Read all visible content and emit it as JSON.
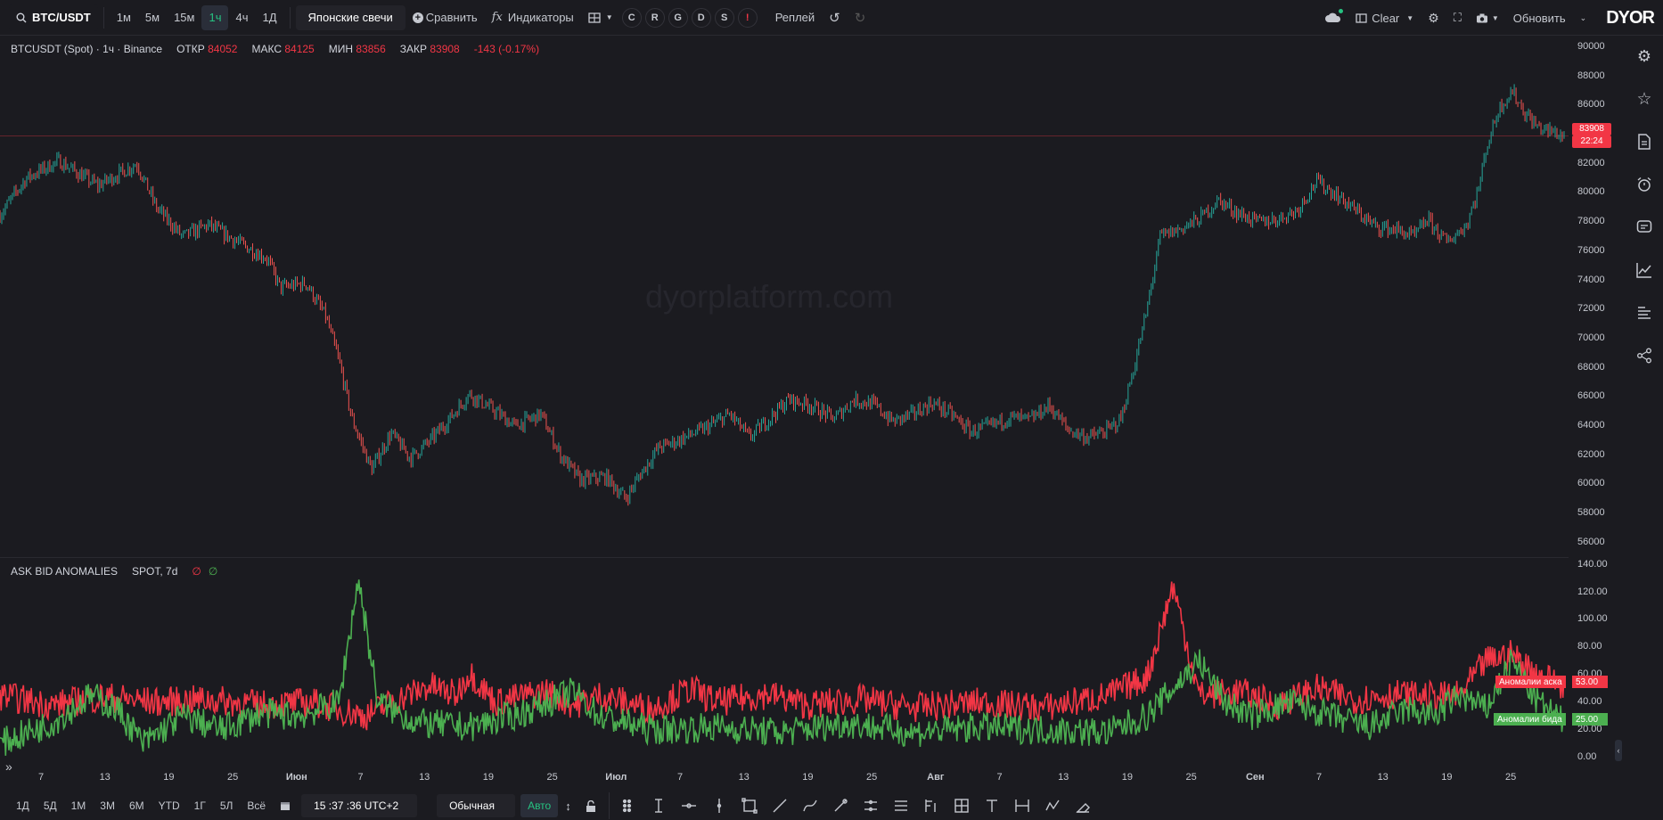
{
  "topbar": {
    "symbol": "BTC/USDT",
    "intervals": [
      {
        "label": "1м",
        "active": false
      },
      {
        "label": "5м",
        "active": false
      },
      {
        "label": "15м",
        "active": false
      },
      {
        "label": "1ч",
        "active": true
      },
      {
        "label": "4ч",
        "active": false
      },
      {
        "label": "1Д",
        "active": false
      }
    ],
    "chart_type": "Японские свечи",
    "compare_label": "Сравнить",
    "indicators_label": "Индикаторы",
    "letter_buttons": [
      "C",
      "R",
      "G",
      "D",
      "S",
      "!"
    ],
    "replay_label": "Реплей",
    "clear_label": "Clear",
    "update_label": "Обновить",
    "logo": "DYOR"
  },
  "infobar": {
    "title": "BTCUSDT (Spot) · 1ч · Binance",
    "open_label": "ОТКР",
    "open": "84052",
    "high_label": "МАКС",
    "high": "84125",
    "low_label": "МИН",
    "low": "83856",
    "close_label": "ЗАКР",
    "close": "83908",
    "change": "-143 (-0.17%)"
  },
  "watermark": "dyorplatform.com",
  "price_axis": {
    "labels": [
      "90000",
      "88000",
      "86000",
      "84000",
      "82000",
      "80000",
      "78000",
      "76000",
      "74000",
      "72000",
      "70000",
      "68000",
      "66000",
      "64000",
      "62000",
      "60000",
      "58000",
      "56000"
    ],
    "last_price": "83908",
    "countdown": "22:24"
  },
  "indicator": {
    "name": "ASK BID ANOMALIES",
    "params": "SPOT, 7d",
    "ask_symbol": "∅",
    "bid_symbol": "∅",
    "axis_labels": [
      "140.00",
      "120.00",
      "100.00",
      "80.00",
      "60.00",
      "40.00",
      "20.00",
      "0.00"
    ],
    "ask_label": "Аномалии аска",
    "ask_value": "53.00",
    "bid_label": "Аномалии бида",
    "bid_value": "25.00"
  },
  "time_axis": [
    "7",
    "13",
    "19",
    "25",
    "Июн",
    "7",
    "13",
    "19",
    "25",
    "Июл",
    "7",
    "13",
    "19",
    "25",
    "Авг",
    "7",
    "13",
    "19",
    "25",
    "Сен",
    "7",
    "13",
    "19",
    "25"
  ],
  "bottombar": {
    "ranges": [
      "1Д",
      "5Д",
      "1М",
      "3М",
      "6М",
      "YTD",
      "1Г",
      "5Л",
      "Всё"
    ],
    "time": "15 :37 :36 UTC+2",
    "scale_mode": "Обычная",
    "auto_label": "Авто"
  },
  "colors": {
    "up": "#26a69a",
    "down": "#ef5350",
    "ask": "#f23645",
    "bid": "#4caf50",
    "accent": "#26c281"
  },
  "chart_data": [
    {
      "type": "candlestick",
      "title": "BTCUSDT (Spot) · 1ч · Binance",
      "ylim": [
        55000,
        90800
      ],
      "x_ticks": [
        "7",
        "13",
        "19",
        "25",
        "Июн",
        "7",
        "13",
        "19",
        "25",
        "Июл",
        "7",
        "13",
        "19",
        "25",
        "Авг",
        "7",
        "13",
        "19",
        "25",
        "Сен",
        "7",
        "13",
        "19",
        "25"
      ],
      "close_path": [
        [
          0,
          78500
        ],
        [
          4,
          81000
        ],
        [
          9,
          82200
        ],
        [
          15,
          80500
        ],
        [
          21,
          82000
        ],
        [
          24,
          79000
        ],
        [
          28,
          77000
        ],
        [
          32,
          77800
        ],
        [
          37,
          76500
        ],
        [
          41,
          75500
        ],
        [
          43,
          73500
        ],
        [
          47,
          73800
        ],
        [
          50,
          71500
        ],
        [
          52,
          68500
        ],
        [
          54,
          64500
        ],
        [
          57,
          61000
        ],
        [
          60,
          63500
        ],
        [
          63,
          61800
        ],
        [
          66,
          63000
        ],
        [
          69,
          64500
        ],
        [
          72,
          66200
        ],
        [
          76,
          65000
        ],
        [
          79,
          64000
        ],
        [
          83,
          64800
        ],
        [
          86,
          62000
        ],
        [
          89,
          60300
        ],
        [
          93,
          60500
        ],
        [
          96,
          59000
        ],
        [
          98,
          60500
        ],
        [
          101,
          62500
        ],
        [
          104,
          63000
        ],
        [
          108,
          63800
        ],
        [
          112,
          64800
        ],
        [
          115,
          63200
        ],
        [
          118,
          64500
        ],
        [
          121,
          65800
        ],
        [
          124,
          65500
        ],
        [
          128,
          64500
        ],
        [
          131,
          65800
        ],
        [
          134,
          65500
        ],
        [
          137,
          64300
        ],
        [
          140,
          64800
        ],
        [
          143,
          65600
        ],
        [
          146,
          64800
        ],
        [
          149,
          63600
        ],
        [
          152,
          64000
        ],
        [
          155,
          64600
        ],
        [
          158,
          64400
        ],
        [
          161,
          65400
        ],
        [
          164,
          63700
        ],
        [
          167,
          63200
        ],
        [
          170,
          63700
        ],
        [
          172,
          64500
        ],
        [
          174,
          68000
        ],
        [
          176,
          72000
        ],
        [
          178,
          77000
        ],
        [
          181,
          77500
        ],
        [
          184,
          78200
        ],
        [
          187,
          79500
        ],
        [
          190,
          78600
        ],
        [
          193,
          78000
        ],
        [
          196,
          78200
        ],
        [
          199,
          78800
        ],
        [
          202,
          80800
        ],
        [
          205,
          79900
        ],
        [
          208,
          78800
        ],
        [
          211,
          77700
        ],
        [
          214,
          77500
        ],
        [
          217,
          77000
        ],
        [
          219,
          78200
        ],
        [
          222,
          76600
        ],
        [
          225,
          77800
        ],
        [
          227,
          80500
        ],
        [
          228,
          83000
        ],
        [
          230,
          85800
        ],
        [
          232,
          87000
        ],
        [
          234,
          85500
        ],
        [
          236,
          84500
        ],
        [
          238,
          84200
        ],
        [
          240,
          83908
        ]
      ]
    },
    {
      "type": "line",
      "title": "ASK BID ANOMALIES",
      "ylim": [
        -8,
        145
      ],
      "series": [
        {
          "name": "Аномалии аска",
          "points": [
            [
              0,
              45
            ],
            [
              8,
              38
            ],
            [
              16,
              44
            ],
            [
              24,
              40
            ],
            [
              32,
              42
            ],
            [
              40,
              38
            ],
            [
              48,
              40
            ],
            [
              56,
              30
            ],
            [
              60,
              40
            ],
            [
              66,
              52
            ],
            [
              70,
              45
            ],
            [
              72,
              62
            ],
            [
              76,
              40
            ],
            [
              84,
              48
            ],
            [
              88,
              38
            ],
            [
              92,
              45
            ],
            [
              100,
              35
            ],
            [
              106,
              50
            ],
            [
              110,
              40
            ],
            [
              118,
              46
            ],
            [
              124,
              38
            ],
            [
              132,
              42
            ],
            [
              140,
              36
            ],
            [
              150,
              40
            ],
            [
              160,
              36
            ],
            [
              170,
              45
            ],
            [
              176,
              58
            ],
            [
              180,
              125
            ],
            [
              184,
              45
            ],
            [
              190,
              48
            ],
            [
              196,
              38
            ],
            [
              202,
              50
            ],
            [
              208,
              42
            ],
            [
              214,
              46
            ],
            [
              220,
              44
            ],
            [
              224,
              45
            ],
            [
              228,
              70
            ],
            [
              232,
              75
            ],
            [
              236,
              60
            ],
            [
              240,
              53
            ]
          ]
        },
        {
          "name": "Аномалии бида",
          "points": [
            [
              0,
              10
            ],
            [
              8,
              25
            ],
            [
              14,
              45
            ],
            [
              18,
              35
            ],
            [
              22,
              10
            ],
            [
              28,
              30
            ],
            [
              34,
              20
            ],
            [
              40,
              32
            ],
            [
              46,
              30
            ],
            [
              52,
              40
            ],
            [
              55,
              130
            ],
            [
              58,
              40
            ],
            [
              64,
              25
            ],
            [
              72,
              22
            ],
            [
              80,
              32
            ],
            [
              88,
              48
            ],
            [
              92,
              30
            ],
            [
              100,
              20
            ],
            [
              110,
              22
            ],
            [
              120,
              18
            ],
            [
              130,
              25
            ],
            [
              140,
              18
            ],
            [
              150,
              22
            ],
            [
              160,
              20
            ],
            [
              170,
              18
            ],
            [
              176,
              30
            ],
            [
              180,
              50
            ],
            [
              184,
              70
            ],
            [
              188,
              40
            ],
            [
              192,
              30
            ],
            [
              198,
              40
            ],
            [
              204,
              30
            ],
            [
              210,
              22
            ],
            [
              216,
              35
            ],
            [
              220,
              30
            ],
            [
              224,
              45
            ],
            [
              228,
              35
            ],
            [
              232,
              70
            ],
            [
              236,
              40
            ],
            [
              240,
              25
            ]
          ]
        }
      ]
    }
  ]
}
